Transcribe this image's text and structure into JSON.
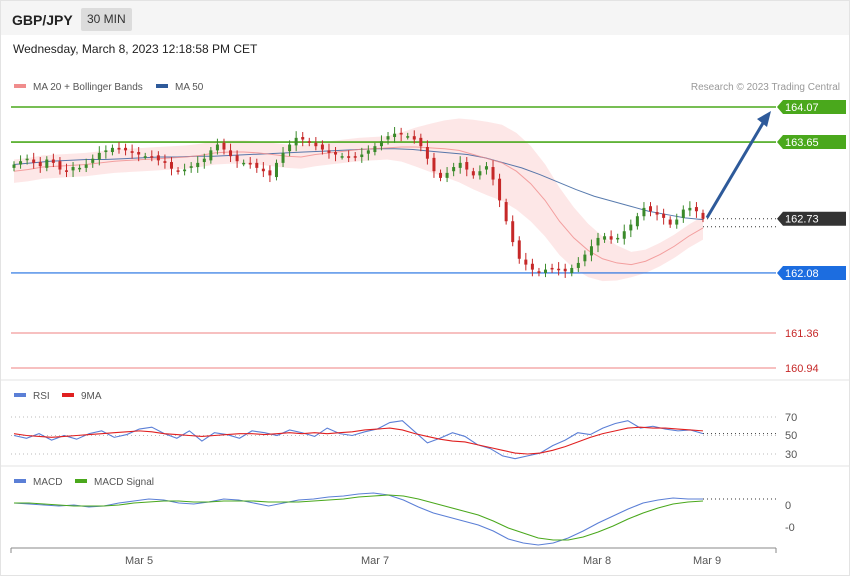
{
  "header": {
    "pair": "GBP/JPY",
    "timeframe": "30 MIN",
    "datetime": "Wednesday, March 8, 2023 12:18:58 PM CET"
  },
  "legend": {
    "ma20": "MA 20 + Bollinger Bands",
    "ma50": "MA 50",
    "credit": "Research © 2023 Trading Central",
    "rsi": "RSI",
    "rsi_ma": "9MA",
    "macd": "MACD",
    "macd_signal": "MACD Signal"
  },
  "colors": {
    "resistance": "#4aa81c",
    "pivot": "#1c6de0",
    "support": "#f29a9a",
    "ma20": "#f08c8c",
    "ma50": "#2e5a9a",
    "band_fill": "#fde3e3",
    "up_candle": "#3a8a2a",
    "down_candle": "#c62828",
    "arrow": "#2e5a9a",
    "rsi": "#5b7fd6",
    "rsi_ma": "#e02020",
    "macd": "#5b7fd6",
    "macd_signal": "#4aa81c"
  },
  "chart_data": [
    {
      "type": "candlestick",
      "title": "GBP/JPY",
      "x_labels": [
        "Mar 5",
        "Mar 7",
        "Mar 8",
        "Mar 9"
      ],
      "ylim": [
        160.8,
        164.3
      ],
      "levels": [
        {
          "label": "164.07",
          "value": 164.07,
          "kind": "resistance"
        },
        {
          "label": "163.65",
          "value": 163.65,
          "kind": "resistance"
        },
        {
          "label": "162.73",
          "value": 162.73,
          "kind": "last"
        },
        {
          "label": "162.08",
          "value": 162.08,
          "kind": "pivot"
        },
        {
          "label": "161.36",
          "value": 161.36,
          "kind": "support"
        },
        {
          "label": "160.94",
          "value": 160.94,
          "kind": "support"
        }
      ],
      "forecast_target": 164.07,
      "ohlc_close_path": [
        163.38,
        163.42,
        163.45,
        163.4,
        163.36,
        163.44,
        163.4,
        163.32,
        163.3,
        163.35,
        163.34,
        163.38,
        163.45,
        163.52,
        163.55,
        163.58,
        163.56,
        163.55,
        163.52,
        163.5,
        163.48,
        163.47,
        163.43,
        163.4,
        163.33,
        163.3,
        163.32,
        163.36,
        163.4,
        163.45,
        163.55,
        163.62,
        163.56,
        163.48,
        163.42,
        163.4,
        163.38,
        163.34,
        163.3,
        163.25,
        163.4,
        163.52,
        163.62,
        163.7,
        163.68,
        163.64,
        163.6,
        163.56,
        163.52,
        163.5,
        163.48,
        163.46,
        163.48,
        163.5,
        163.55,
        163.6,
        163.66,
        163.72,
        163.75,
        163.74,
        163.72,
        163.68,
        163.6,
        163.45,
        163.3,
        163.22,
        163.28,
        163.35,
        163.4,
        163.32,
        163.25,
        163.3,
        163.36,
        163.2,
        162.95,
        162.7,
        162.45,
        162.25,
        162.18,
        162.12,
        162.08,
        162.12,
        162.14,
        162.12,
        162.1,
        162.14,
        162.2,
        162.3,
        162.4,
        162.5,
        162.52,
        162.48,
        162.5,
        162.58,
        162.66,
        162.76,
        162.86,
        162.82,
        162.78,
        162.74,
        162.66,
        162.72,
        162.84,
        162.86,
        162.82,
        162.73
      ],
      "ma20_path": [
        163.3,
        163.32,
        163.35,
        163.36,
        163.37,
        163.38,
        163.4,
        163.42,
        163.43,
        163.44,
        163.45,
        163.46,
        163.47,
        163.49,
        163.52,
        163.53,
        163.53,
        163.52,
        163.5,
        163.48,
        163.47,
        163.5,
        163.52,
        163.54,
        163.56,
        163.57,
        163.58,
        163.59,
        163.59,
        163.58,
        163.57,
        163.55,
        163.5,
        163.45,
        163.4,
        163.3,
        163.15,
        162.95,
        162.7,
        162.5,
        162.35,
        162.25,
        162.2,
        162.18,
        162.22,
        162.3,
        162.4,
        162.52,
        162.62
      ],
      "ma50_path": [
        163.38,
        163.4,
        163.42,
        163.43,
        163.44,
        163.44,
        163.45,
        163.46,
        163.47,
        163.47,
        163.48,
        163.48,
        163.49,
        163.5,
        163.51,
        163.52,
        163.53,
        163.54,
        163.55,
        163.56,
        163.57,
        163.57,
        163.56,
        163.54,
        163.52,
        163.5,
        163.46,
        163.4,
        163.34,
        163.26,
        163.17,
        163.08,
        163.0,
        162.94,
        162.88,
        162.82,
        162.78,
        162.74,
        162.72
      ]
    },
    {
      "type": "line",
      "title": "RSI",
      "ylim": [
        20,
        80
      ],
      "ticks": [
        "70",
        "50",
        "30"
      ],
      "series": [
        {
          "name": "RSI",
          "values": [
            50,
            47,
            52,
            45,
            50,
            46,
            52,
            55,
            48,
            51,
            57,
            59,
            52,
            47,
            55,
            44,
            53,
            51,
            47,
            55,
            53,
            50,
            56,
            53,
            49,
            58,
            52,
            50,
            54,
            57,
            64,
            66,
            54,
            42,
            47,
            53,
            49,
            40,
            36,
            28,
            25,
            28,
            31,
            39,
            45,
            53,
            51,
            58,
            63,
            66,
            58,
            60,
            57,
            55,
            56,
            52
          ]
        },
        {
          "name": "9MA",
          "values": [
            52,
            50,
            49,
            48,
            49,
            50,
            51,
            52,
            53,
            54,
            55,
            54,
            52,
            51,
            50,
            49,
            50,
            51,
            52,
            52,
            51,
            52,
            53,
            52,
            53,
            52,
            53,
            54,
            56,
            57,
            58,
            56,
            52,
            49,
            46,
            44,
            43,
            40,
            37,
            34,
            31,
            30,
            31,
            34,
            38,
            43,
            48,
            52,
            55,
            58,
            59,
            58,
            58,
            57,
            56,
            55
          ]
        }
      ]
    },
    {
      "type": "line",
      "title": "MACD",
      "ticks": [
        "0",
        "-0"
      ],
      "series": [
        {
          "name": "MACD",
          "values": [
            0.02,
            0.01,
            0.0,
            -0.01,
            0.0,
            -0.02,
            -0.01,
            0.02,
            0.04,
            0.06,
            0.05,
            0.02,
            0.01,
            0.03,
            0.06,
            0.05,
            0.02,
            -0.01,
            0.02,
            0.05,
            0.06,
            0.08,
            0.09,
            0.11,
            0.12,
            0.1,
            0.05,
            -0.02,
            -0.08,
            -0.12,
            -0.16,
            -0.2,
            -0.26,
            -0.34,
            -0.38,
            -0.4,
            -0.38,
            -0.33,
            -0.26,
            -0.18,
            -0.11,
            -0.04,
            0.02,
            0.05,
            0.07,
            0.06,
            0.06
          ]
        },
        {
          "name": "MACD Signal",
          "values": [
            0.02,
            0.02,
            0.01,
            0.0,
            -0.01,
            -0.01,
            -0.01,
            0.0,
            0.02,
            0.03,
            0.04,
            0.04,
            0.03,
            0.03,
            0.04,
            0.04,
            0.04,
            0.03,
            0.03,
            0.03,
            0.04,
            0.05,
            0.06,
            0.08,
            0.09,
            0.1,
            0.09,
            0.06,
            0.02,
            -0.02,
            -0.06,
            -0.1,
            -0.16,
            -0.23,
            -0.28,
            -0.33,
            -0.35,
            -0.35,
            -0.32,
            -0.27,
            -0.21,
            -0.14,
            -0.08,
            -0.03,
            0.01,
            0.03,
            0.04
          ]
        }
      ]
    }
  ]
}
